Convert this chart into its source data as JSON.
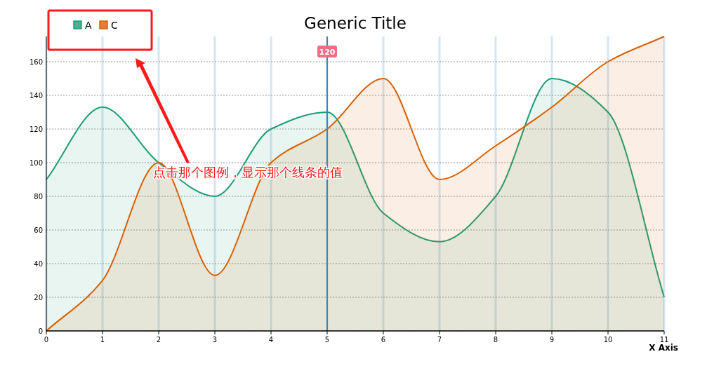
{
  "chart_data": {
    "type": "area",
    "title": "Generic Title",
    "xlabel": "X Axis",
    "x": [
      0,
      1,
      2,
      3,
      4,
      5,
      6,
      7,
      8,
      9,
      10,
      11
    ],
    "series": [
      {
        "name": "A",
        "color": "#1b9e77",
        "values": [
          90,
          133,
          100,
          80,
          120,
          130,
          70,
          53,
          80,
          150,
          130,
          20
        ]
      },
      {
        "name": "C",
        "color": "#d95f02",
        "values": [
          0,
          30,
          100,
          33,
          100,
          120,
          150,
          90,
          110,
          133,
          160,
          175
        ]
      }
    ],
    "xlim": [
      0,
      11
    ],
    "xticks": [
      0,
      1,
      2,
      3,
      4,
      5,
      6,
      7,
      8,
      9,
      10,
      11
    ],
    "ylim": [
      0,
      175
    ],
    "yticks": [
      0,
      20,
      40,
      60,
      80,
      100,
      120,
      140,
      160
    ],
    "ref_lines": [
      {
        "axis": "x",
        "value": 5,
        "color": "#3a87c0"
      }
    ],
    "annotations": [
      "120",
      "点击那个图例，显示那个线条的值"
    ],
    "grid": true,
    "legend": "top left",
    "marker": "none",
    "line_style": "solid"
  }
}
